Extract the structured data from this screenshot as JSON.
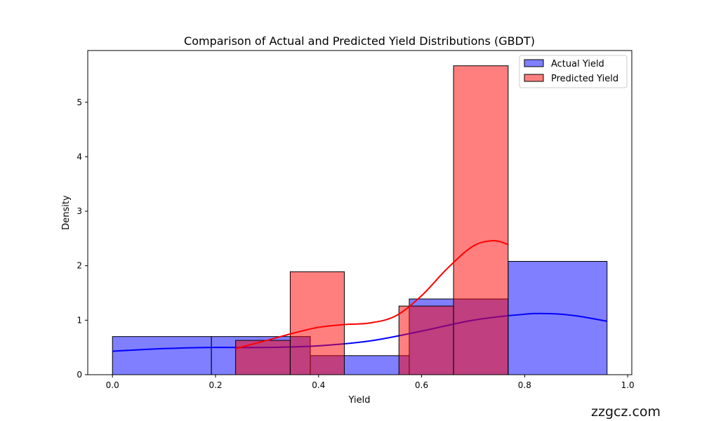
{
  "chart_data": {
    "type": "bar",
    "title": "Comparison of Actual and Predicted Yield Distributions (GBDT)",
    "xlabel": "Yield",
    "ylabel": "Density",
    "xlim": [
      -0.048,
      1.008
    ],
    "ylim": [
      0,
      5.95
    ],
    "xticks": [
      0.0,
      0.2,
      0.4,
      0.6,
      0.8,
      1.0
    ],
    "xtick_labels": [
      "0.0",
      "0.2",
      "0.4",
      "0.6",
      "0.8",
      "1.0"
    ],
    "yticks": [
      0,
      1,
      2,
      3,
      4,
      5
    ],
    "ytick_labels": [
      "0",
      "1",
      "2",
      "3",
      "4",
      "5"
    ],
    "legend_position": "top-right",
    "series": [
      {
        "name": "Actual Yield",
        "color": "#0000ff",
        "bin_edges": [
          0.0,
          0.192,
          0.384,
          0.576,
          0.768,
          0.96
        ],
        "values": [
          0.7,
          0.7,
          0.35,
          1.39,
          2.08
        ],
        "kde": {
          "x": [
            0.0,
            0.1,
            0.2,
            0.3,
            0.4,
            0.5,
            0.6,
            0.7,
            0.8,
            0.85,
            0.9,
            0.96
          ],
          "y": [
            0.43,
            0.48,
            0.5,
            0.5,
            0.53,
            0.62,
            0.8,
            1.0,
            1.11,
            1.12,
            1.08,
            0.98
          ]
        }
      },
      {
        "name": "Predicted Yield",
        "color": "#ff0000",
        "bin_edges": [
          0.239,
          0.345,
          0.45,
          0.556,
          0.662,
          0.768
        ],
        "values": [
          0.63,
          1.89,
          0.0,
          1.26,
          5.67
        ],
        "kde": {
          "x": [
            0.239,
            0.3,
            0.35,
            0.4,
            0.45,
            0.5,
            0.55,
            0.6,
            0.65,
            0.7,
            0.74,
            0.768
          ],
          "y": [
            0.48,
            0.63,
            0.76,
            0.87,
            0.92,
            0.95,
            1.08,
            1.45,
            1.95,
            2.36,
            2.46,
            2.39
          ]
        }
      }
    ]
  },
  "watermark": "zzgcz.com"
}
